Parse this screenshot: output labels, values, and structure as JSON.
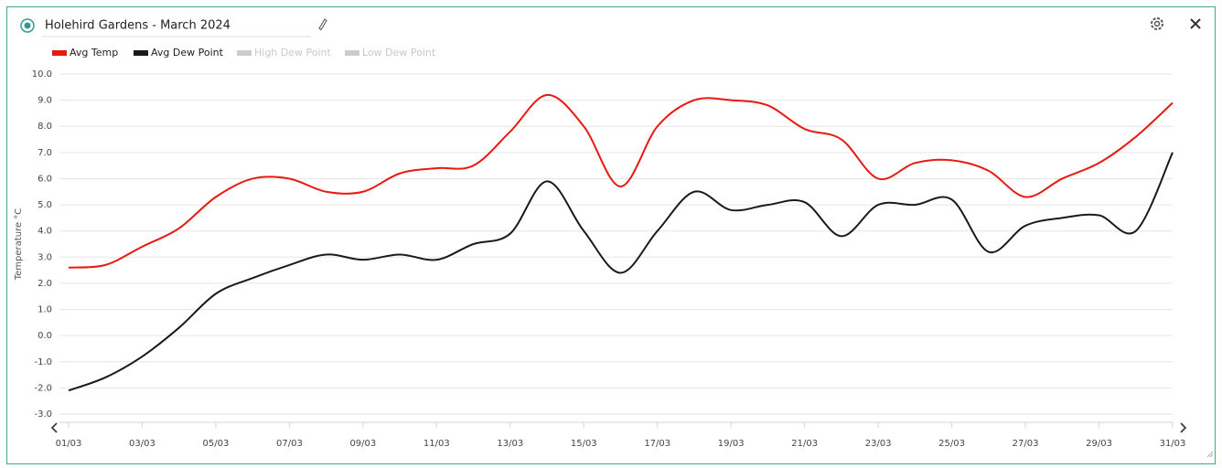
{
  "chart_data": {
    "type": "line",
    "title": "Holehird Gardens - March 2024",
    "y_label": "Temperature °C",
    "categories": [
      "01/03",
      null,
      "03/03",
      null,
      "05/03",
      null,
      "07/03",
      null,
      "09/03",
      null,
      "11/03",
      null,
      "13/03",
      null,
      "15/03",
      null,
      "17/03",
      null,
      "19/03",
      null,
      "21/03",
      null,
      "23/03",
      null,
      "25/03",
      null,
      "27/03",
      null,
      "29/03",
      null,
      "31/03"
    ],
    "series": [
      {
        "name": "Avg Temp",
        "color": "#e8190e",
        "visible": true,
        "values": [
          2.6,
          2.7,
          3.4,
          4.1,
          5.3,
          6.0,
          6.0,
          5.5,
          5.5,
          6.2,
          6.4,
          6.5,
          7.8,
          9.2,
          8.0,
          5.7,
          8.0,
          9.0,
          9.0,
          8.8,
          7.9,
          7.5,
          6.0,
          6.6,
          6.7,
          6.3,
          5.3,
          6.0,
          6.6,
          7.6,
          8.9
        ]
      },
      {
        "name": "Avg Dew Point",
        "color": "#1a1a1a",
        "visible": true,
        "values": [
          -2.1,
          -1.6,
          -0.8,
          0.3,
          1.6,
          2.2,
          2.7,
          3.1,
          2.9,
          3.1,
          2.9,
          3.5,
          3.9,
          5.9,
          4.0,
          2.4,
          4.0,
          5.5,
          4.8,
          5.0,
          5.1,
          3.8,
          5.0,
          5.0,
          5.2,
          3.2,
          4.2,
          4.5,
          4.6,
          4.0,
          7.0
        ]
      },
      {
        "name": "High Dew Point",
        "color": "#cccccc",
        "visible": false,
        "values": [
          null,
          null,
          null,
          null,
          null,
          null,
          null,
          null,
          null,
          null,
          null,
          null,
          null,
          null,
          null,
          null,
          null,
          null,
          null,
          null,
          null,
          null,
          null,
          null,
          null,
          null,
          null,
          null,
          null,
          null,
          null
        ]
      },
      {
        "name": "Low Dew Point",
        "color": "#cccccc",
        "visible": false,
        "values": [
          null,
          null,
          null,
          null,
          null,
          null,
          null,
          null,
          null,
          null,
          null,
          null,
          null,
          null,
          null,
          null,
          null,
          null,
          null,
          null,
          null,
          null,
          null,
          null,
          null,
          null,
          null,
          null,
          null,
          null,
          null
        ]
      }
    ],
    "ylim": [
      -3,
      10
    ],
    "yticks": [
      {
        "value": -3,
        "label": "-3.0"
      },
      {
        "value": -2,
        "label": "-2.0"
      },
      {
        "value": -1,
        "label": "-1.0"
      },
      {
        "value": 0,
        "label": "0.0"
      },
      {
        "value": 1,
        "label": "1.0"
      },
      {
        "value": 2,
        "label": "2.0"
      },
      {
        "value": 3,
        "label": "3.0"
      },
      {
        "value": 4,
        "label": "4.0"
      },
      {
        "value": 5,
        "label": "5.0"
      },
      {
        "value": 6,
        "label": "6.0"
      },
      {
        "value": 7,
        "label": "7.0"
      },
      {
        "value": 8,
        "label": "8.0"
      },
      {
        "value": 9,
        "label": "9.0"
      },
      {
        "value": 10,
        "label": "10.0"
      }
    ],
    "grid": true,
    "smooth": true,
    "legend": "top-left"
  }
}
